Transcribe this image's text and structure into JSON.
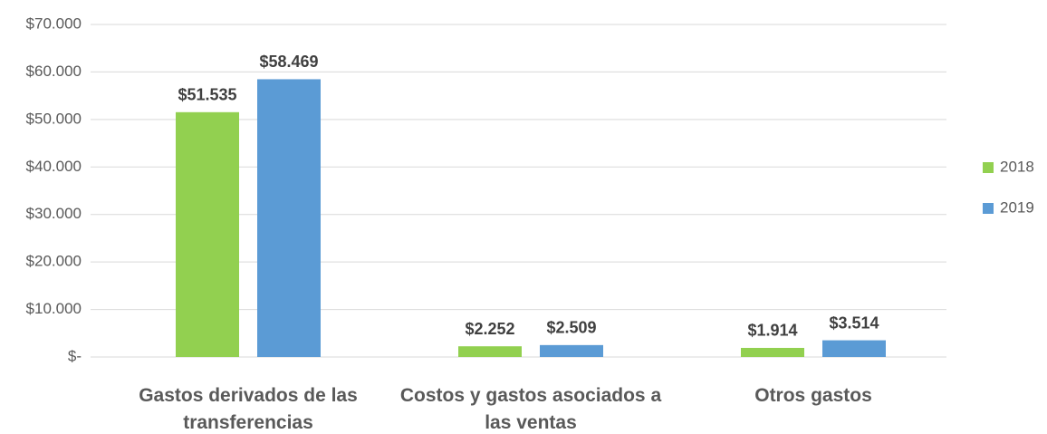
{
  "chart_data": {
    "type": "bar",
    "categories": [
      "Gastos derivados de las transferencias",
      "Costos y gastos asociados a las ventas",
      "Otros gastos"
    ],
    "series": [
      {
        "name": "2018",
        "color": "#92d050",
        "values": [
          51535,
          2252,
          1914
        ],
        "value_labels": [
          "$51.535",
          "$2.252",
          "$1.914"
        ]
      },
      {
        "name": "2019",
        "color": "#5b9bd5",
        "values": [
          58469,
          2509,
          3514
        ],
        "value_labels": [
          "$58.469",
          "$2.509",
          "$3.514"
        ]
      }
    ],
    "ylim": [
      0,
      70000
    ],
    "yticks": [
      {
        "value": 0,
        "label": "$-"
      },
      {
        "value": 10000,
        "label": "$10.000"
      },
      {
        "value": 20000,
        "label": "$20.000"
      },
      {
        "value": 30000,
        "label": "$30.000"
      },
      {
        "value": 40000,
        "label": "$40.000"
      },
      {
        "value": 50000,
        "label": "$50.000"
      },
      {
        "value": 60000,
        "label": "$60.000"
      },
      {
        "value": 70000,
        "label": "$70.000"
      }
    ],
    "grid": true,
    "legend": "right"
  }
}
